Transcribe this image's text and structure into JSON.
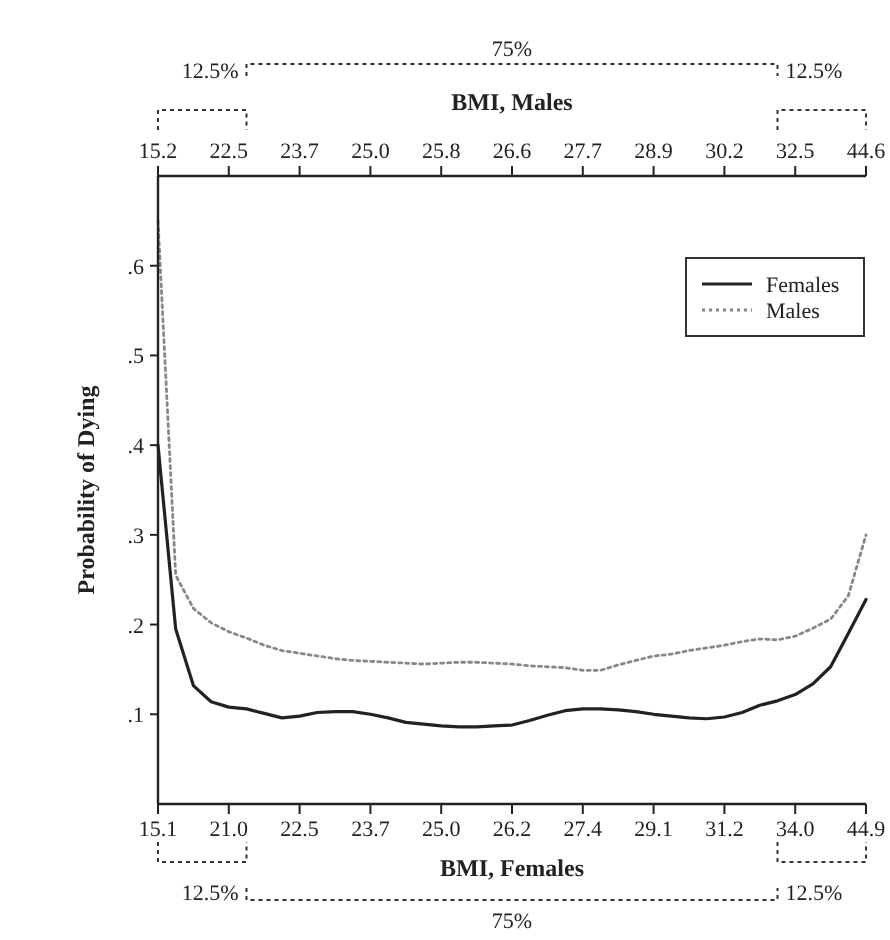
{
  "chart_data": {
    "type": "line",
    "xlabel": "BMI, Females",
    "x2label": "BMI, Males",
    "ylabel": "Probability of Dying",
    "categories": [
      "15.1",
      null,
      null,
      null,
      "21.0",
      null,
      null,
      null,
      "22.5",
      null,
      null,
      null,
      "23.7",
      null,
      null,
      null,
      "25.0",
      null,
      null,
      null,
      "26.2",
      null,
      null,
      null,
      "27.4",
      null,
      null,
      null,
      "29.1",
      null,
      null,
      null,
      "31.2",
      null,
      null,
      null,
      "34.0",
      null,
      null,
      null,
      "44.9"
    ],
    "ylim": [
      0,
      0.7
    ],
    "yticks": [
      {
        "value": 0.1,
        "label": ".1"
      },
      {
        "value": 0.2,
        "label": ".2"
      },
      {
        "value": 0.3,
        "label": ".3"
      },
      {
        "value": 0.4,
        "label": ".4"
      },
      {
        "value": 0.5,
        "label": ".5"
      },
      {
        "value": 0.6,
        "label": ".6"
      }
    ],
    "grid": false,
    "legend": "top right",
    "annotations": [
      "12.5%",
      "75%",
      "12.5%",
      "12.5%",
      "75%",
      "12.5%",
      "15.2",
      "22.5",
      "23.7",
      "25.0",
      "25.8",
      "26.6",
      "27.7",
      "28.9",
      "30.2",
      "32.5",
      "44.6"
    ],
    "series": [
      {
        "name": "Females",
        "color": "#222222",
        "line_style": "solid",
        "values": [
          0.4,
          0.195,
          0.132,
          0.114,
          0.108,
          0.106,
          0.101,
          0.096,
          0.098,
          0.102,
          0.103,
          0.103,
          0.1,
          0.096,
          0.091,
          0.089,
          0.087,
          0.086,
          0.086,
          0.087,
          0.088,
          0.093,
          0.099,
          0.104,
          0.106,
          0.106,
          0.105,
          0.103,
          0.1,
          0.098,
          0.096,
          0.095,
          0.097,
          0.102,
          0.11,
          0.115,
          0.122,
          0.134,
          0.153,
          0.19,
          0.228
        ]
      },
      {
        "name": "Males",
        "color": "#888888",
        "line_style": "dotted",
        "values": [
          0.65,
          0.255,
          0.218,
          0.202,
          0.192,
          0.185,
          0.177,
          0.171,
          0.168,
          0.165,
          0.162,
          0.16,
          0.159,
          0.158,
          0.157,
          0.156,
          0.157,
          0.158,
          0.158,
          0.157,
          0.156,
          0.154,
          0.153,
          0.152,
          0.149,
          0.149,
          0.155,
          0.16,
          0.165,
          0.167,
          0.171,
          0.174,
          0.177,
          0.181,
          0.184,
          0.183,
          0.187,
          0.196,
          0.206,
          0.232,
          0.3
        ]
      }
    ]
  }
}
